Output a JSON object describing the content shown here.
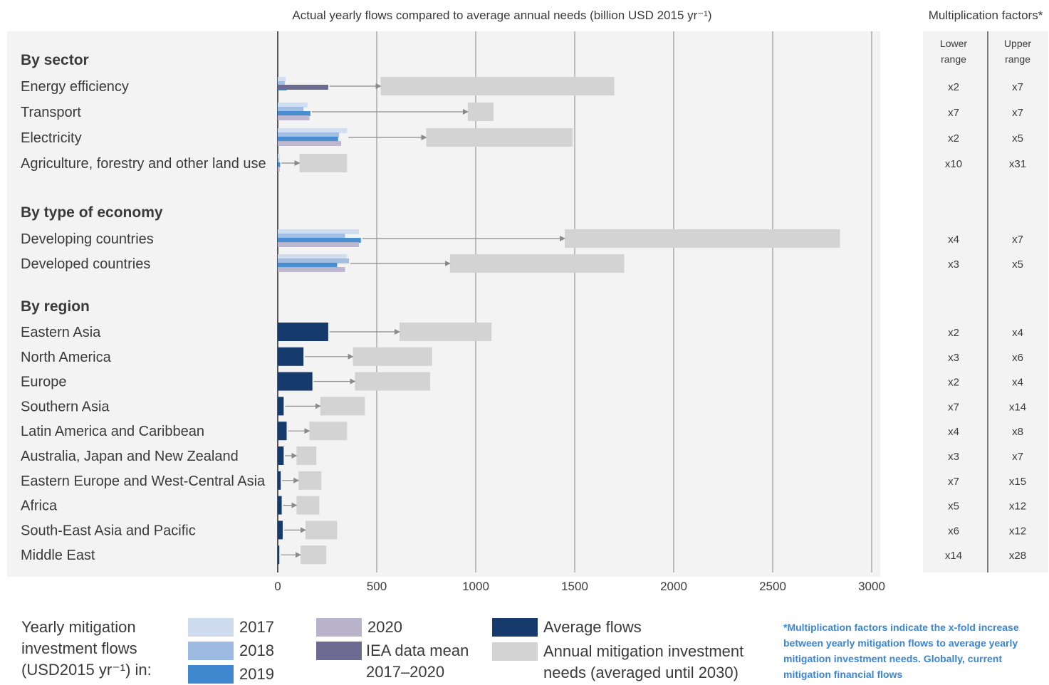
{
  "chart_data": {
    "type": "bar",
    "title": "Actual yearly flows compared to average annual needs (billion USD 2015 yr⁻¹)",
    "xlim": [
      0,
      3000
    ],
    "xticks": [
      "0",
      "500",
      "1000",
      "1500",
      "2000",
      "2500",
      "3000"
    ],
    "grid": true,
    "groups": [
      {
        "name": "By sector",
        "rows": [
          {
            "label": "Energy efficiency",
            "y2017": 40,
            "y2018": 35,
            "y2019": 45,
            "iea": 255,
            "need": [
              520,
              1700
            ],
            "lower": "x2",
            "upper": "x7"
          },
          {
            "label": "Transport",
            "y2017": 150,
            "y2018": 130,
            "y2019": 165,
            "y2020": 160,
            "need": [
              960,
              1090
            ],
            "lower": "x7",
            "upper": "x7"
          },
          {
            "label": "Electricity",
            "y2017": 350,
            "y2018": 310,
            "y2019": 305,
            "y2020": 320,
            "need": [
              750,
              1490
            ],
            "lower": "x2",
            "upper": "x5"
          },
          {
            "label": "Agriculture, forestry and other land use",
            "y2017": 10,
            "y2018": 8,
            "y2019": 12,
            "y2020": 10,
            "need": [
              110,
              350
            ],
            "lower": "x10",
            "upper": "x31"
          }
        ]
      },
      {
        "name": "By type of economy",
        "rows": [
          {
            "label": "Developing countries",
            "y2017": 410,
            "y2018": 340,
            "y2019": 420,
            "y2020": 410,
            "need": [
              1450,
              2840
            ],
            "lower": "x4",
            "upper": "x7"
          },
          {
            "label": "Developed countries",
            "y2017": 350,
            "y2018": 360,
            "y2019": 300,
            "y2020": 340,
            "need": [
              870,
              1750
            ],
            "lower": "x3",
            "upper": "x5"
          }
        ]
      },
      {
        "name": "By region",
        "rows": [
          {
            "label": "Eastern Asia",
            "avg": 255,
            "need": [
              615,
              1080
            ],
            "lower": "x2",
            "upper": "x4"
          },
          {
            "label": "North America",
            "avg": 130,
            "need": [
              380,
              780
            ],
            "lower": "x3",
            "upper": "x6"
          },
          {
            "label": "Europe",
            "avg": 175,
            "need": [
              390,
              770
            ],
            "lower": "x2",
            "upper": "x4"
          },
          {
            "label": "Southern Asia",
            "avg": 30,
            "need": [
              215,
              440
            ],
            "lower": "x7",
            "upper": "x14"
          },
          {
            "label": "Latin America and Caribbean",
            "avg": 45,
            "need": [
              160,
              350
            ],
            "lower": "x4",
            "upper": "x8"
          },
          {
            "label": "Australia, Japan and New Zealand",
            "avg": 30,
            "need": [
              95,
              195
            ],
            "lower": "x3",
            "upper": "x7"
          },
          {
            "label": "Eastern Europe and West-Central Asia",
            "avg": 15,
            "need": [
              105,
              220
            ],
            "lower": "x7",
            "upper": "x15"
          },
          {
            "label": "Africa",
            "avg": 20,
            "need": [
              95,
              210
            ],
            "lower": "x5",
            "upper": "x12"
          },
          {
            "label": "South-East Asia and Pacific",
            "avg": 25,
            "need": [
              140,
              300
            ],
            "lower": "x6",
            "upper": "x12"
          },
          {
            "label": "Middle East",
            "avg": 8,
            "need": [
              115,
              245
            ],
            "lower": "x14",
            "upper": "x28"
          }
        ]
      }
    ],
    "multiplication": {
      "title": "Multiplication factors*",
      "lower_label": "Lower range",
      "upper_label": "Upper range"
    },
    "legend": {
      "title": "Yearly mitigation investment flows (USD2015 yr⁻¹) in:",
      "y2017": "2017",
      "y2018": "2018",
      "y2019": "2019",
      "y2020": "2020",
      "iea": "IEA data mean 2017–2020",
      "avg": "Average flows",
      "needs": "Annual mitigation investment needs (averaged until 2030)"
    },
    "note": "*Multiplication factors indicate the x-fold increase between yearly mitigation flows to average yearly mitigation investment needs. Globally, current mitigation financial flows"
  },
  "colors": {
    "y2017": "#cfdcef",
    "y2018": "#9dbbe2",
    "y2019": "#3f88cf",
    "y2020": "#b9b3cc",
    "iea": "#6d6a92",
    "avg": "#153a6b",
    "needs": "#d3d3d4",
    "panel": "#f3f3f3",
    "note": "#3a86d4"
  }
}
